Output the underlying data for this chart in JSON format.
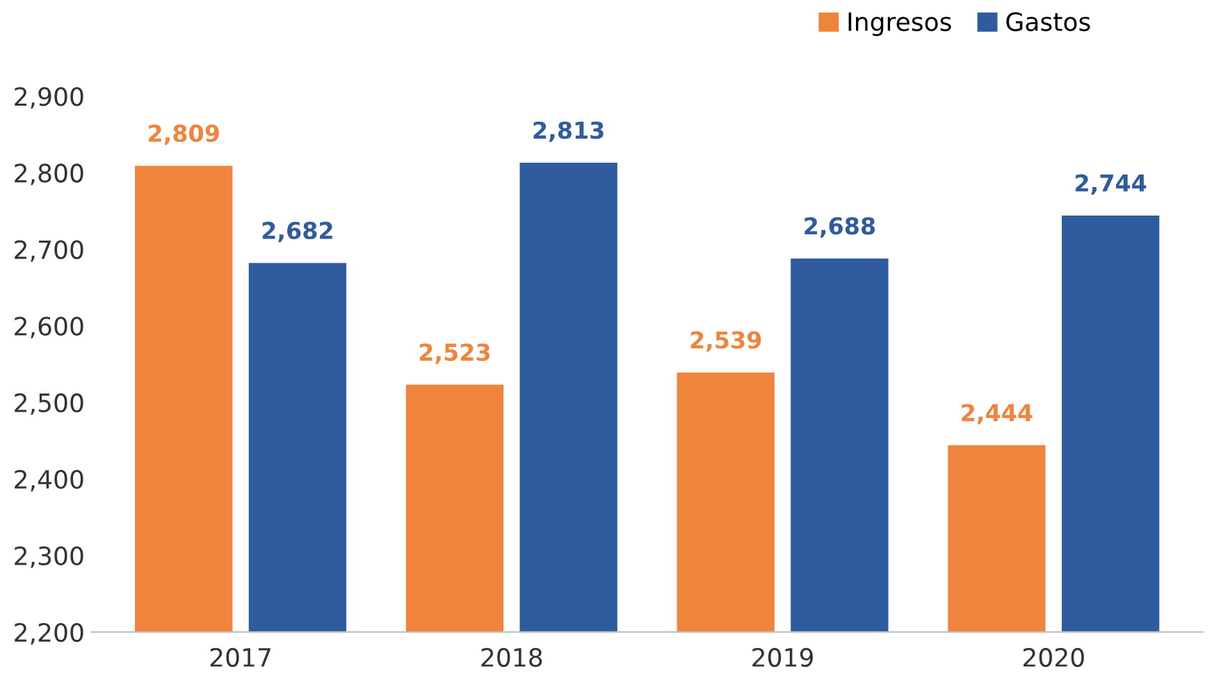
{
  "chart_data": {
    "type": "bar",
    "categories": [
      "2017",
      "2018",
      "2019",
      "2020"
    ],
    "series": [
      {
        "name": "Ingresos",
        "color": "#f0843c",
        "values": [
          2809,
          2523,
          2539,
          2444
        ],
        "value_labels": [
          "2,809",
          "2,523",
          "2,539",
          "2,444"
        ]
      },
      {
        "name": "Gastos",
        "color": "#2e5c9e",
        "values": [
          2682,
          2813,
          2688,
          2744
        ],
        "value_labels": [
          "2,682",
          "2,813",
          "2,688",
          "2,744"
        ]
      }
    ],
    "ylim": [
      2200,
      2900
    ],
    "yticks": [
      {
        "value": 2200,
        "label": "2,200"
      },
      {
        "value": 2300,
        "label": "2,300"
      },
      {
        "value": 2400,
        "label": "2,400"
      },
      {
        "value": 2500,
        "label": "2,500"
      },
      {
        "value": 2600,
        "label": "2,600"
      },
      {
        "value": 2700,
        "label": "2,700"
      },
      {
        "value": 2800,
        "label": "2,800"
      },
      {
        "value": 2900,
        "label": "2,900"
      }
    ],
    "grid": false,
    "legend": "top right"
  }
}
